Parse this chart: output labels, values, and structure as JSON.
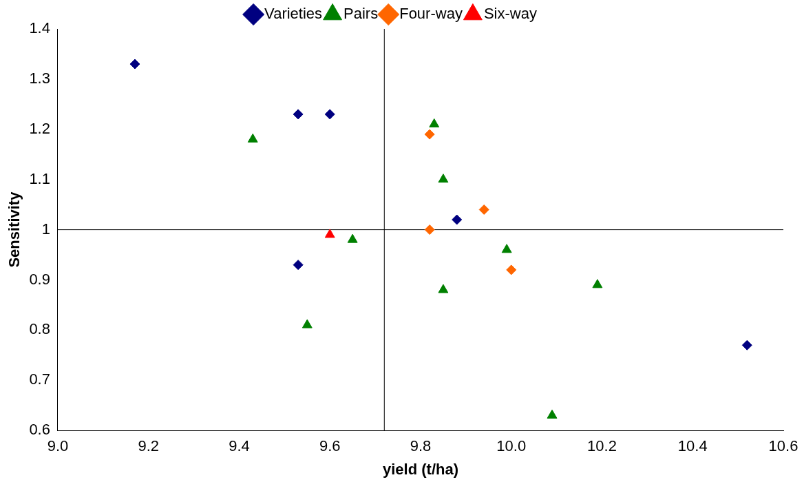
{
  "chart_data": {
    "type": "scatter",
    "xlabel": "yield (t/ha)",
    "ylabel": "Sensitivity",
    "xlim": [
      9.0,
      10.6
    ],
    "xticks": [
      {
        "value": 9.0,
        "label": "9.0"
      },
      {
        "value": 9.2,
        "label": "9.2"
      },
      {
        "value": 9.4,
        "label": "9.4"
      },
      {
        "value": 9.6,
        "label": "9.6"
      },
      {
        "value": 9.8,
        "label": "9.8"
      },
      {
        "value": 10.0,
        "label": "10.0"
      },
      {
        "value": 10.2,
        "label": "10.2"
      },
      {
        "value": 10.4,
        "label": "10.4"
      },
      {
        "value": 10.6,
        "label": "10.6"
      }
    ],
    "ylim": [
      0.6,
      1.4
    ],
    "yticks": [
      0.6,
      0.7,
      0.8,
      0.9,
      1,
      1.1,
      1.2,
      1.3,
      1.4
    ],
    "grid": false,
    "legend": "top",
    "series": [
      {
        "name": "Varieties",
        "color": "#000080",
        "marker": "diamond",
        "x": [
          9.17,
          9.53,
          9.6,
          9.53,
          9.88,
          10.52
        ],
        "values": [
          1.33,
          1.23,
          1.23,
          0.93,
          1.02,
          0.77
        ]
      },
      {
        "name": "Pairs",
        "color": "#008000",
        "marker": "triangle",
        "x": [
          9.43,
          9.65,
          9.55,
          9.83,
          9.85,
          9.85,
          9.99,
          10.19,
          10.09
        ],
        "values": [
          1.18,
          0.98,
          0.81,
          1.21,
          1.1,
          0.88,
          0.96,
          0.89,
          0.63
        ]
      },
      {
        "name": "Four-way",
        "color": "#ff6600",
        "marker": "diamond",
        "x": [
          9.82,
          9.94,
          9.82,
          10.0
        ],
        "values": [
          1.19,
          1.04,
          1.0,
          0.92
        ]
      },
      {
        "name": "Six-way",
        "color": "#ff0000",
        "marker": "triangle",
        "x": [
          9.6
        ],
        "values": [
          0.99
        ]
      }
    ],
    "ref_lines": [
      {
        "axis": "x",
        "value": 9.72,
        "color": "#000000"
      },
      {
        "axis": "y",
        "value": 1.0,
        "color": "#000000"
      }
    ]
  }
}
